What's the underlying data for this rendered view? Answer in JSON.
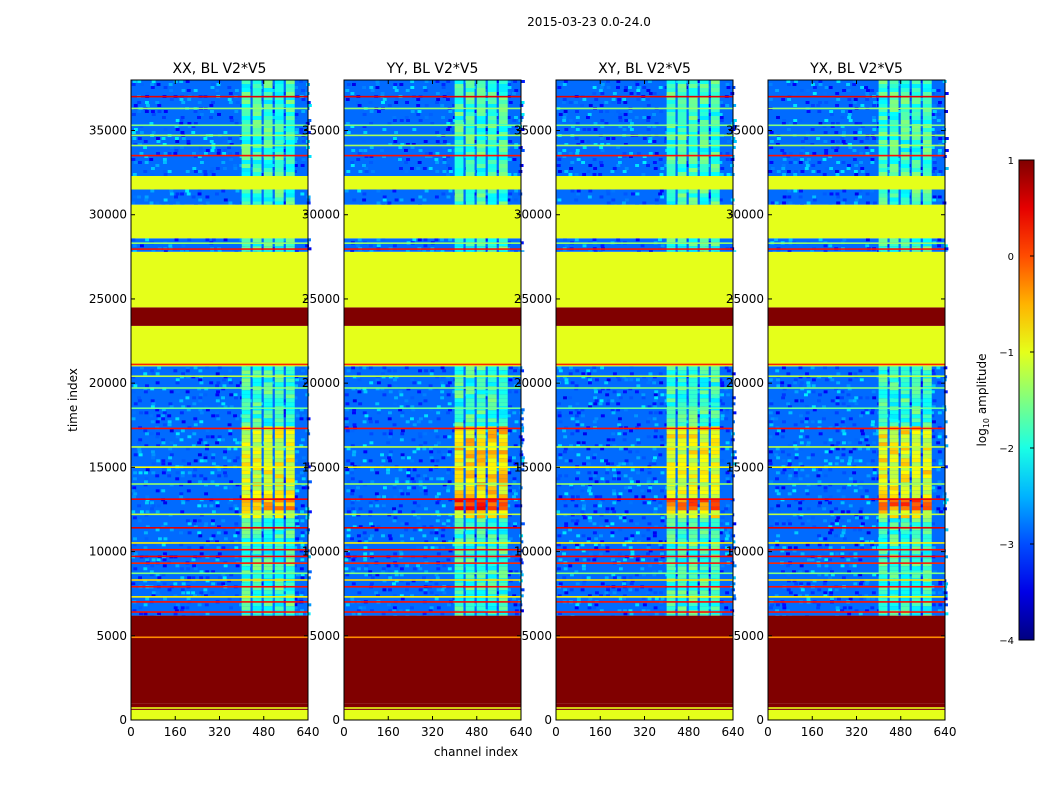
{
  "suptitle": "2015-03-23 0.0-24.0",
  "chart_data": {
    "type": "heatmap",
    "xlabel": "channel index",
    "ylabel": "time index",
    "xlim": [
      0,
      640
    ],
    "ylim": [
      0,
      38000
    ],
    "xticks": [
      "0",
      "160",
      "320",
      "480",
      "640"
    ],
    "yticks": [
      "0",
      "5000",
      "10000",
      "15000",
      "20000",
      "25000",
      "30000",
      "35000"
    ],
    "panels": [
      {
        "title": "XX, BL V2*V5",
        "band_strength": 0.75
      },
      {
        "title": "YY, BL V2*V5",
        "band_strength": 1.0
      },
      {
        "title": "XY, BL V2*V5",
        "band_strength": 0.8
      },
      {
        "title": "YX, BL V2*V5",
        "band_strength": 0.85
      }
    ],
    "colorbar": {
      "label": "log10 amplitude",
      "label_base": "log",
      "label_sub": "10",
      "label_rest": " amplitude",
      "range": [
        -4,
        1
      ],
      "ticks": [
        "1",
        "0",
        "−1",
        "−2",
        "−3",
        "−4"
      ],
      "tick_values": [
        1,
        0,
        -1,
        -2,
        -3,
        -4
      ],
      "colormap": "jet"
    },
    "regions": [
      {
        "y0": 0,
        "y1": 600,
        "kind": "const",
        "value": -1
      },
      {
        "y0": 600,
        "y1": 1000,
        "kind": "const",
        "value": 1
      },
      {
        "y0": 1000,
        "y1": 6200,
        "kind": "const",
        "value": 1
      },
      {
        "y0": 6200,
        "y1": 21000,
        "kind": "data"
      },
      {
        "y0": 21000,
        "y1": 23400,
        "kind": "const",
        "value": -1
      },
      {
        "y0": 23400,
        "y1": 24500,
        "kind": "const",
        "value": 1
      },
      {
        "y0": 24500,
        "y1": 27800,
        "kind": "const",
        "value": -1
      },
      {
        "y0": 27800,
        "y1": 28600,
        "kind": "data"
      },
      {
        "y0": 28600,
        "y1": 30600,
        "kind": "const",
        "value": -1
      },
      {
        "y0": 30600,
        "y1": 31500,
        "kind": "data"
      },
      {
        "y0": 31500,
        "y1": 32300,
        "kind": "const",
        "value": -1
      },
      {
        "y0": 32300,
        "y1": 38000,
        "kind": "data"
      }
    ],
    "hlines": [
      {
        "y": 700,
        "value": -1
      },
      {
        "y": 4900,
        "value": -0.3
      },
      {
        "y": 6400,
        "value": 0.3
      },
      {
        "y": 7000,
        "value": 0.3
      },
      {
        "y": 7300,
        "value": -0.8
      },
      {
        "y": 7900,
        "value": 0.3
      },
      {
        "y": 8300,
        "value": -0.7
      },
      {
        "y": 8700,
        "value": -1.5
      },
      {
        "y": 9300,
        "value": 0.2
      },
      {
        "y": 9700,
        "value": 0.4
      },
      {
        "y": 10100,
        "value": 0.3
      },
      {
        "y": 10500,
        "value": -0.8
      },
      {
        "y": 11400,
        "value": 0.5
      },
      {
        "y": 12200,
        "value": -1.2
      },
      {
        "y": 13100,
        "value": 0.4
      },
      {
        "y": 14000,
        "value": -1.4
      },
      {
        "y": 15000,
        "value": -0.9
      },
      {
        "y": 16200,
        "value": -1.2
      },
      {
        "y": 17300,
        "value": 0.3
      },
      {
        "y": 18500,
        "value": -1.6
      },
      {
        "y": 19700,
        "value": -1.5
      },
      {
        "y": 20400,
        "value": -1.2
      },
      {
        "y": 21100,
        "value": 0.2
      },
      {
        "y": 27950,
        "value": 0.3
      },
      {
        "y": 28300,
        "value": -1.4
      },
      {
        "y": 33500,
        "value": 0.3
      },
      {
        "y": 34100,
        "value": -1.3
      },
      {
        "y": 34700,
        "value": -1.3
      },
      {
        "y": 35300,
        "value": -1.5
      },
      {
        "y": 36300,
        "value": -1.4
      },
      {
        "y": 37000,
        "value": 0.5
      }
    ],
    "band": {
      "x0": 400,
      "x1": 600,
      "column_width": 40
    }
  }
}
